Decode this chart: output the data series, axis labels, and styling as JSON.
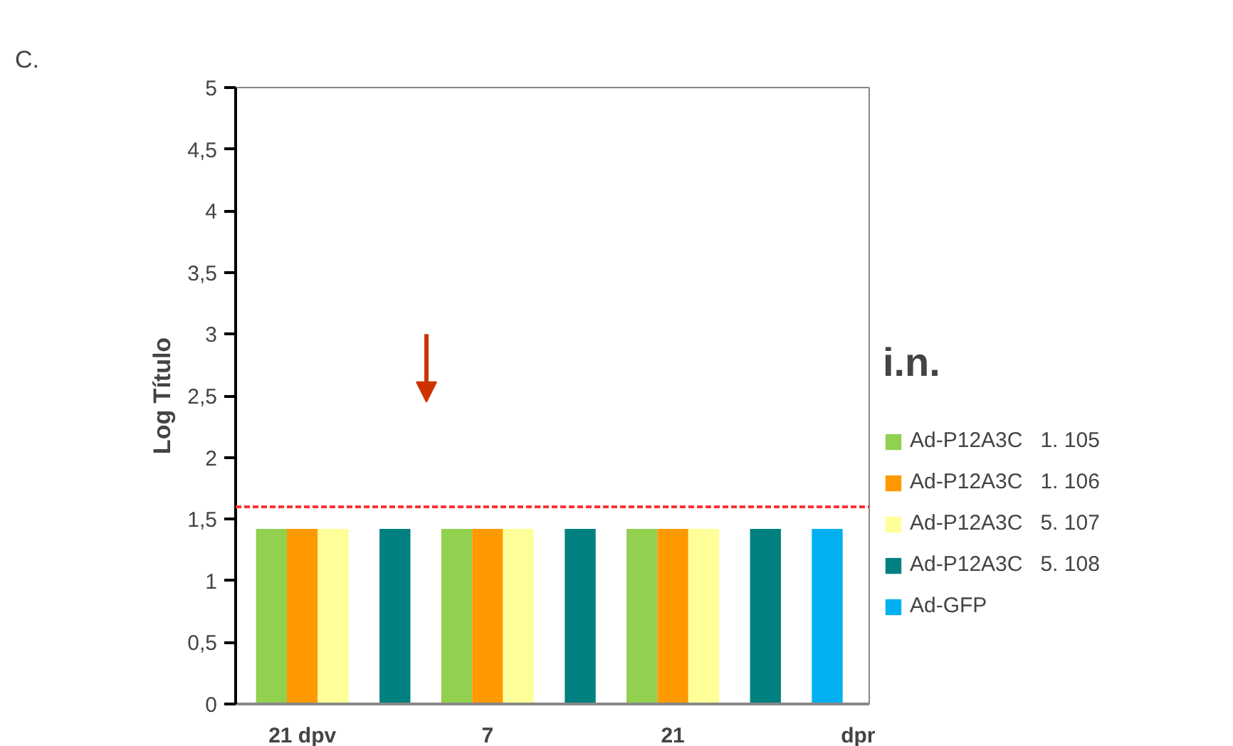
{
  "chart_data": {
    "type": "bar",
    "ylabel": "Log Título",
    "legend_title": "i.n.",
    "categories": [
      "21 dpv",
      "7",
      "21",
      "dpr"
    ],
    "series": [
      {
        "name": "Ad-P12A3C   1. 105",
        "color": "#92d050",
        "values": [
          1.42,
          1.42,
          1.42,
          null
        ]
      },
      {
        "name": "Ad-P12A3C   1. 106",
        "color": "#ff9900",
        "values": [
          1.42,
          1.42,
          1.42,
          null
        ]
      },
      {
        "name": "Ad-P12A3C   5. 107",
        "color": "#ffff99",
        "values": [
          1.42,
          1.42,
          1.42,
          null
        ]
      },
      {
        "name": "Ad-P12A3C   5. 108",
        "color": "#008080",
        "values": [
          1.42,
          1.42,
          1.42,
          null
        ]
      },
      {
        "name": "Ad-GFP",
        "color": "#00b0f0",
        "values": [
          null,
          null,
          null,
          1.42
        ]
      }
    ],
    "ylim": [
      0,
      5
    ],
    "yticks": [
      0,
      {
        "value": 0.5,
        "label": "0,5"
      },
      1,
      {
        "value": 1.5,
        "label": "1,5"
      },
      2,
      {
        "value": 2.5,
        "label": "2,5"
      },
      3,
      {
        "value": 3.5,
        "label": "3,5"
      },
      4,
      {
        "value": 4.5,
        "label": "4,5"
      },
      5
    ],
    "ref_lines": [
      {
        "axis": "y",
        "value": 1.6,
        "color": "#ff3333",
        "line_style": "dashed"
      }
    ],
    "annotations": [
      "C."
    ],
    "grid": false,
    "legend": "right"
  }
}
